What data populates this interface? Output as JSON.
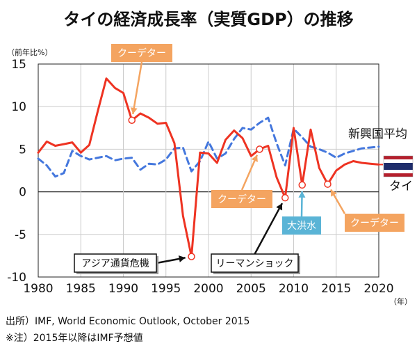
{
  "chart_data": {
    "type": "line",
    "title": "タイの経済成長率（実質GDP）の推移",
    "ylabel": "（前年比%）",
    "xlabel": "（年）",
    "ylim": [
      -10,
      15
    ],
    "xlim": [
      1980,
      2020
    ],
    "y_ticks": [
      "15",
      "10",
      "5",
      "0",
      "-5",
      "-10"
    ],
    "x_ticks": [
      "1980",
      "1985",
      "1990",
      "1995",
      "2000",
      "2005",
      "2010",
      "2015",
      "2020"
    ],
    "grid": true,
    "series": [
      {
        "name": "タイ",
        "color": "#ee3322",
        "style": "solid",
        "x": [
          1980,
          1981,
          1982,
          1983,
          1984,
          1985,
          1986,
          1987,
          1988,
          1989,
          1990,
          1991,
          1992,
          1993,
          1994,
          1995,
          1996,
          1997,
          1998,
          1999,
          2000,
          2001,
          2002,
          2003,
          2004,
          2005,
          2006,
          2007,
          2008,
          2009,
          2010,
          2011,
          2012,
          2013,
          2014,
          2015,
          2016,
          2017,
          2018,
          2019,
          2020
        ],
        "values": [
          4.6,
          5.9,
          5.4,
          5.6,
          5.8,
          4.6,
          5.5,
          9.5,
          13.3,
          12.2,
          11.6,
          8.4,
          9.2,
          8.7,
          8.0,
          8.1,
          5.7,
          -2.8,
          -7.6,
          4.6,
          4.5,
          3.4,
          6.1,
          7.2,
          6.3,
          4.2,
          5.0,
          5.4,
          1.7,
          -0.7,
          7.5,
          0.8,
          7.3,
          2.8,
          0.9,
          2.5,
          3.2,
          3.6,
          3.4,
          3.3,
          3.2
        ]
      },
      {
        "name": "新興国平均",
        "color": "#4477dd",
        "style": "dashed",
        "x": [
          1980,
          1981,
          1982,
          1983,
          1984,
          1985,
          1986,
          1987,
          1988,
          1989,
          1990,
          1991,
          1992,
          1993,
          1994,
          1995,
          1996,
          1997,
          1998,
          1999,
          2000,
          2001,
          2002,
          2003,
          2004,
          2005,
          2006,
          2007,
          2008,
          2009,
          2010,
          2011,
          2012,
          2013,
          2014,
          2015,
          2016,
          2017,
          2018,
          2019,
          2020
        ],
        "values": [
          3.9,
          3.1,
          1.8,
          2.2,
          4.8,
          4.2,
          3.8,
          4.0,
          4.2,
          3.7,
          3.9,
          4.0,
          2.6,
          3.3,
          3.2,
          3.8,
          5.1,
          5.2,
          2.4,
          3.6,
          5.9,
          3.9,
          4.5,
          6.2,
          7.5,
          7.3,
          8.1,
          8.7,
          5.7,
          3.1,
          7.4,
          6.4,
          5.3,
          5.0,
          4.6,
          4.0,
          4.5,
          4.8,
          5.1,
          5.2,
          5.3
        ]
      }
    ],
    "legend": {
      "emerging_label": "新興国平均",
      "thai_label": "タイ",
      "flag_colors": [
        "#b5202d",
        "#ffffff",
        "#1f2d6b"
      ]
    },
    "annotations": [
      {
        "label": "クーデター",
        "x": 1991,
        "y": 8.4,
        "style": "orange"
      },
      {
        "label": "アジア通貨危機",
        "x": 1998,
        "y": -7.6,
        "style": "boxed"
      },
      {
        "label": "クーデター",
        "x": 2006,
        "y": 5.0,
        "style": "orange"
      },
      {
        "label": "リーマンショック",
        "x": 2009,
        "y": -0.7,
        "style": "boxed"
      },
      {
        "label": "大洪水",
        "x": 2011,
        "y": 0.8,
        "style": "blue"
      },
      {
        "label": "クーデター",
        "x": 2014,
        "y": 0.9,
        "style": "orange"
      }
    ],
    "colors": {
      "orange": "#f4a460",
      "blue": "#5ab4d6",
      "grid": "#cccccc"
    }
  },
  "source_lines": [
    "出所）IMF, World Economic Outlook, October 2015",
    "※注）2015年以降はIMF予想値"
  ]
}
